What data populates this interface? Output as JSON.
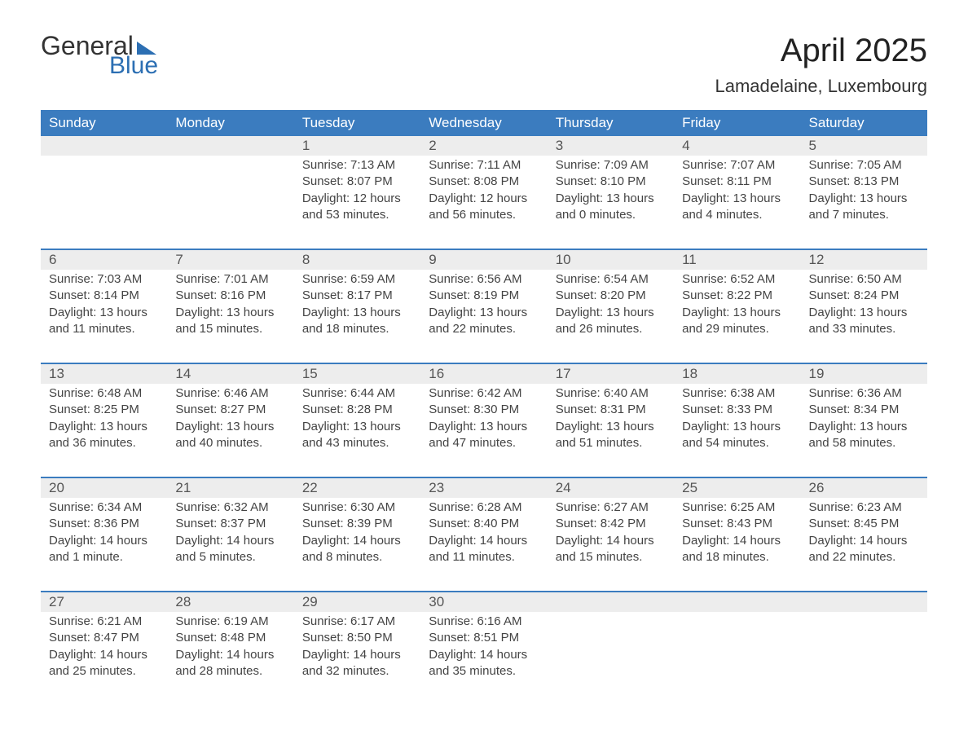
{
  "brand": {
    "general": "General",
    "blue": "Blue"
  },
  "title": "April 2025",
  "location": "Lamadelaine, Luxembourg",
  "colors": {
    "header_bg": "#3b7cbf",
    "header_text": "#ffffff",
    "daynum_bg": "#ededed",
    "week_border": "#3b7cbf",
    "body_text": "#444444",
    "title_text": "#222222",
    "logo_blue": "#2c6fb3",
    "page_bg": "#ffffff"
  },
  "typography": {
    "title_fontsize": 40,
    "location_fontsize": 22,
    "weekday_fontsize": 17,
    "daynum_fontsize": 17,
    "body_fontsize": 15,
    "font_family": "Arial"
  },
  "weekdays": [
    "Sunday",
    "Monday",
    "Tuesday",
    "Wednesday",
    "Thursday",
    "Friday",
    "Saturday"
  ],
  "weeks": [
    [
      {
        "n": "",
        "sr": "",
        "ss": "",
        "dl": ""
      },
      {
        "n": "",
        "sr": "",
        "ss": "",
        "dl": ""
      },
      {
        "n": "1",
        "sr": "Sunrise: 7:13 AM",
        "ss": "Sunset: 8:07 PM",
        "dl": "Daylight: 12 hours and 53 minutes."
      },
      {
        "n": "2",
        "sr": "Sunrise: 7:11 AM",
        "ss": "Sunset: 8:08 PM",
        "dl": "Daylight: 12 hours and 56 minutes."
      },
      {
        "n": "3",
        "sr": "Sunrise: 7:09 AM",
        "ss": "Sunset: 8:10 PM",
        "dl": "Daylight: 13 hours and 0 minutes."
      },
      {
        "n": "4",
        "sr": "Sunrise: 7:07 AM",
        "ss": "Sunset: 8:11 PM",
        "dl": "Daylight: 13 hours and 4 minutes."
      },
      {
        "n": "5",
        "sr": "Sunrise: 7:05 AM",
        "ss": "Sunset: 8:13 PM",
        "dl": "Daylight: 13 hours and 7 minutes."
      }
    ],
    [
      {
        "n": "6",
        "sr": "Sunrise: 7:03 AM",
        "ss": "Sunset: 8:14 PM",
        "dl": "Daylight: 13 hours and 11 minutes."
      },
      {
        "n": "7",
        "sr": "Sunrise: 7:01 AM",
        "ss": "Sunset: 8:16 PM",
        "dl": "Daylight: 13 hours and 15 minutes."
      },
      {
        "n": "8",
        "sr": "Sunrise: 6:59 AM",
        "ss": "Sunset: 8:17 PM",
        "dl": "Daylight: 13 hours and 18 minutes."
      },
      {
        "n": "9",
        "sr": "Sunrise: 6:56 AM",
        "ss": "Sunset: 8:19 PM",
        "dl": "Daylight: 13 hours and 22 minutes."
      },
      {
        "n": "10",
        "sr": "Sunrise: 6:54 AM",
        "ss": "Sunset: 8:20 PM",
        "dl": "Daylight: 13 hours and 26 minutes."
      },
      {
        "n": "11",
        "sr": "Sunrise: 6:52 AM",
        "ss": "Sunset: 8:22 PM",
        "dl": "Daylight: 13 hours and 29 minutes."
      },
      {
        "n": "12",
        "sr": "Sunrise: 6:50 AM",
        "ss": "Sunset: 8:24 PM",
        "dl": "Daylight: 13 hours and 33 minutes."
      }
    ],
    [
      {
        "n": "13",
        "sr": "Sunrise: 6:48 AM",
        "ss": "Sunset: 8:25 PM",
        "dl": "Daylight: 13 hours and 36 minutes."
      },
      {
        "n": "14",
        "sr": "Sunrise: 6:46 AM",
        "ss": "Sunset: 8:27 PM",
        "dl": "Daylight: 13 hours and 40 minutes."
      },
      {
        "n": "15",
        "sr": "Sunrise: 6:44 AM",
        "ss": "Sunset: 8:28 PM",
        "dl": "Daylight: 13 hours and 43 minutes."
      },
      {
        "n": "16",
        "sr": "Sunrise: 6:42 AM",
        "ss": "Sunset: 8:30 PM",
        "dl": "Daylight: 13 hours and 47 minutes."
      },
      {
        "n": "17",
        "sr": "Sunrise: 6:40 AM",
        "ss": "Sunset: 8:31 PM",
        "dl": "Daylight: 13 hours and 51 minutes."
      },
      {
        "n": "18",
        "sr": "Sunrise: 6:38 AM",
        "ss": "Sunset: 8:33 PM",
        "dl": "Daylight: 13 hours and 54 minutes."
      },
      {
        "n": "19",
        "sr": "Sunrise: 6:36 AM",
        "ss": "Sunset: 8:34 PM",
        "dl": "Daylight: 13 hours and 58 minutes."
      }
    ],
    [
      {
        "n": "20",
        "sr": "Sunrise: 6:34 AM",
        "ss": "Sunset: 8:36 PM",
        "dl": "Daylight: 14 hours and 1 minute."
      },
      {
        "n": "21",
        "sr": "Sunrise: 6:32 AM",
        "ss": "Sunset: 8:37 PM",
        "dl": "Daylight: 14 hours and 5 minutes."
      },
      {
        "n": "22",
        "sr": "Sunrise: 6:30 AM",
        "ss": "Sunset: 8:39 PM",
        "dl": "Daylight: 14 hours and 8 minutes."
      },
      {
        "n": "23",
        "sr": "Sunrise: 6:28 AM",
        "ss": "Sunset: 8:40 PM",
        "dl": "Daylight: 14 hours and 11 minutes."
      },
      {
        "n": "24",
        "sr": "Sunrise: 6:27 AM",
        "ss": "Sunset: 8:42 PM",
        "dl": "Daylight: 14 hours and 15 minutes."
      },
      {
        "n": "25",
        "sr": "Sunrise: 6:25 AM",
        "ss": "Sunset: 8:43 PM",
        "dl": "Daylight: 14 hours and 18 minutes."
      },
      {
        "n": "26",
        "sr": "Sunrise: 6:23 AM",
        "ss": "Sunset: 8:45 PM",
        "dl": "Daylight: 14 hours and 22 minutes."
      }
    ],
    [
      {
        "n": "27",
        "sr": "Sunrise: 6:21 AM",
        "ss": "Sunset: 8:47 PM",
        "dl": "Daylight: 14 hours and 25 minutes."
      },
      {
        "n": "28",
        "sr": "Sunrise: 6:19 AM",
        "ss": "Sunset: 8:48 PM",
        "dl": "Daylight: 14 hours and 28 minutes."
      },
      {
        "n": "29",
        "sr": "Sunrise: 6:17 AM",
        "ss": "Sunset: 8:50 PM",
        "dl": "Daylight: 14 hours and 32 minutes."
      },
      {
        "n": "30",
        "sr": "Sunrise: 6:16 AM",
        "ss": "Sunset: 8:51 PM",
        "dl": "Daylight: 14 hours and 35 minutes."
      },
      {
        "n": "",
        "sr": "",
        "ss": "",
        "dl": ""
      },
      {
        "n": "",
        "sr": "",
        "ss": "",
        "dl": ""
      },
      {
        "n": "",
        "sr": "",
        "ss": "",
        "dl": ""
      }
    ]
  ]
}
